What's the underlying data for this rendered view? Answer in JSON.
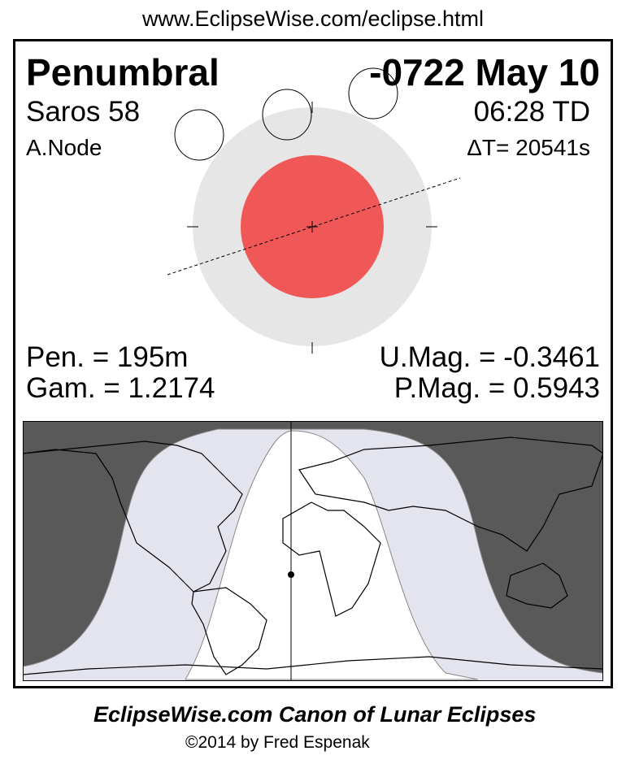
{
  "header_url": "www.EclipseWise.com/eclipse.html",
  "eclipse": {
    "type": "Penumbral",
    "date": "-0722 May 10",
    "saros": "Saros  58",
    "time": "06:28 TD",
    "node": "A.Node",
    "delta_t": "ΔT=  20541s",
    "pen_duration": "Pen. = 195m",
    "gamma": "Gam. = 1.2174",
    "umbral_mag": "U.Mag. = -0.3461",
    "penumbral_mag": "P.Mag. = 0.5943"
  },
  "colors": {
    "penumbra": "#e6e6e6",
    "umbra": "#f05757",
    "night": "#595959",
    "penumbral_zone": "#e4e4ee"
  },
  "footer": {
    "title": "EclipseWise.com Canon of Lunar Eclipses",
    "copyright": "©2014 by Fred Espenak"
  }
}
